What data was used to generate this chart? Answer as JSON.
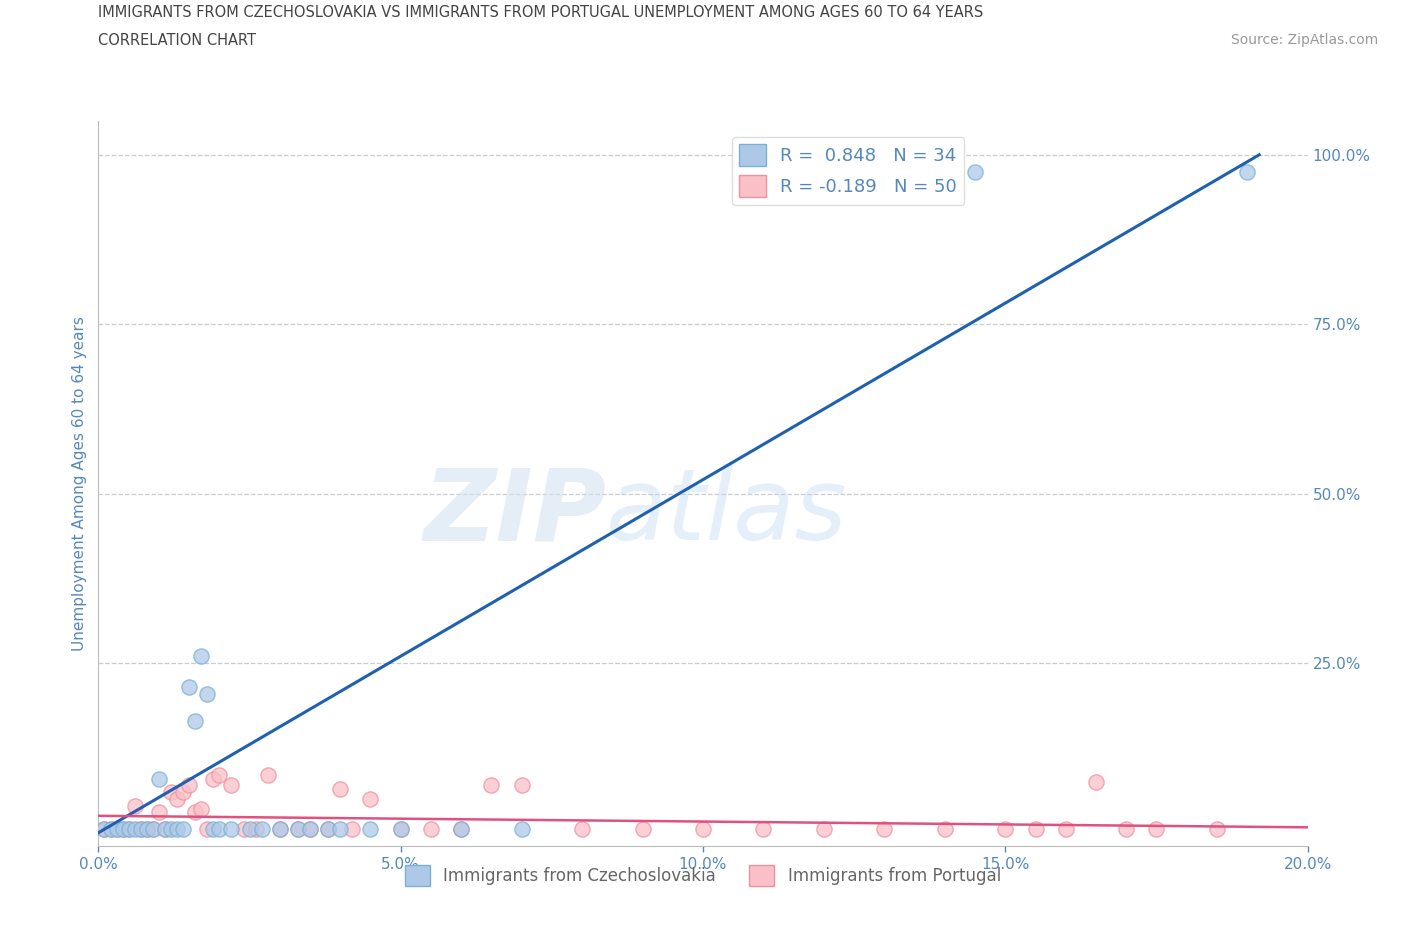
{
  "title_line1": "IMMIGRANTS FROM CZECHOSLOVAKIA VS IMMIGRANTS FROM PORTUGAL UNEMPLOYMENT AMONG AGES 60 TO 64 YEARS",
  "title_line2": "CORRELATION CHART",
  "source": "Source: ZipAtlas.com",
  "ylabel": "Unemployment Among Ages 60 to 64 years",
  "xlim": [
    0.0,
    0.2
  ],
  "ylim": [
    -0.02,
    1.05
  ],
  "xtick_labels": [
    "0.0%",
    "5.0%",
    "10.0%",
    "15.0%",
    "20.0%"
  ],
  "xtick_vals": [
    0.0,
    0.05,
    0.1,
    0.15,
    0.2
  ],
  "ytick_right_vals": [
    0.25,
    0.5,
    0.75,
    1.0
  ],
  "ytick_right_labels": [
    "25.0%",
    "50.0%",
    "75.0%",
    "100.0%"
  ],
  "blue_face": "#aec9e8",
  "blue_edge": "#7ab0d4",
  "pink_face": "#f9c0c8",
  "pink_edge": "#f090a0",
  "blue_line_color": "#2060b0",
  "pink_line_color": "#e05080",
  "R_blue": 0.848,
  "N_blue": 34,
  "R_pink": -0.189,
  "N_pink": 50,
  "legend_label_blue": "Immigrants from Czechoslovakia",
  "legend_label_pink": "Immigrants from Portugal",
  "watermark_zip": "ZIP",
  "watermark_atlas": "atlas",
  "blue_scatter_x": [
    0.001,
    0.002,
    0.003,
    0.004,
    0.005,
    0.006,
    0.007,
    0.008,
    0.009,
    0.01,
    0.011,
    0.012,
    0.013,
    0.014,
    0.015,
    0.016,
    0.017,
    0.018,
    0.019,
    0.02,
    0.022,
    0.025,
    0.027,
    0.03,
    0.033,
    0.035,
    0.038,
    0.04,
    0.045,
    0.05,
    0.06,
    0.07,
    0.145,
    0.19
  ],
  "blue_scatter_y": [
    0.005,
    0.005,
    0.005,
    0.005,
    0.005,
    0.005,
    0.005,
    0.005,
    0.005,
    0.08,
    0.005,
    0.005,
    0.005,
    0.005,
    0.215,
    0.165,
    0.26,
    0.205,
    0.005,
    0.005,
    0.005,
    0.005,
    0.005,
    0.005,
    0.005,
    0.005,
    0.005,
    0.005,
    0.005,
    0.005,
    0.005,
    0.005,
    0.975,
    0.975
  ],
  "pink_scatter_x": [
    0.001,
    0.002,
    0.003,
    0.004,
    0.005,
    0.006,
    0.007,
    0.008,
    0.009,
    0.01,
    0.011,
    0.012,
    0.013,
    0.014,
    0.015,
    0.016,
    0.017,
    0.018,
    0.019,
    0.02,
    0.022,
    0.024,
    0.026,
    0.028,
    0.03,
    0.033,
    0.035,
    0.038,
    0.04,
    0.042,
    0.045,
    0.05,
    0.055,
    0.06,
    0.065,
    0.07,
    0.08,
    0.09,
    0.1,
    0.11,
    0.12,
    0.13,
    0.14,
    0.15,
    0.155,
    0.16,
    0.165,
    0.17,
    0.175,
    0.185
  ],
  "pink_scatter_y": [
    0.005,
    0.005,
    0.005,
    0.005,
    0.005,
    0.04,
    0.005,
    0.005,
    0.005,
    0.03,
    0.005,
    0.06,
    0.05,
    0.06,
    0.07,
    0.03,
    0.035,
    0.005,
    0.08,
    0.085,
    0.07,
    0.005,
    0.005,
    0.085,
    0.005,
    0.005,
    0.005,
    0.005,
    0.065,
    0.005,
    0.05,
    0.005,
    0.005,
    0.005,
    0.07,
    0.07,
    0.005,
    0.005,
    0.005,
    0.005,
    0.005,
    0.005,
    0.005,
    0.005,
    0.005,
    0.005,
    0.075,
    0.005,
    0.005,
    0.005
  ],
  "blue_trend_x": [
    0.0,
    0.192
  ],
  "blue_trend_y": [
    0.0,
    1.0
  ],
  "pink_trend_x": [
    0.0,
    0.2
  ],
  "pink_trend_y": [
    0.025,
    0.008
  ],
  "bg_color": "#ffffff",
  "grid_color": "#cccccc",
  "title_color": "#444444",
  "axis_label_color": "#5588bb",
  "tick_color": "#5588bb"
}
